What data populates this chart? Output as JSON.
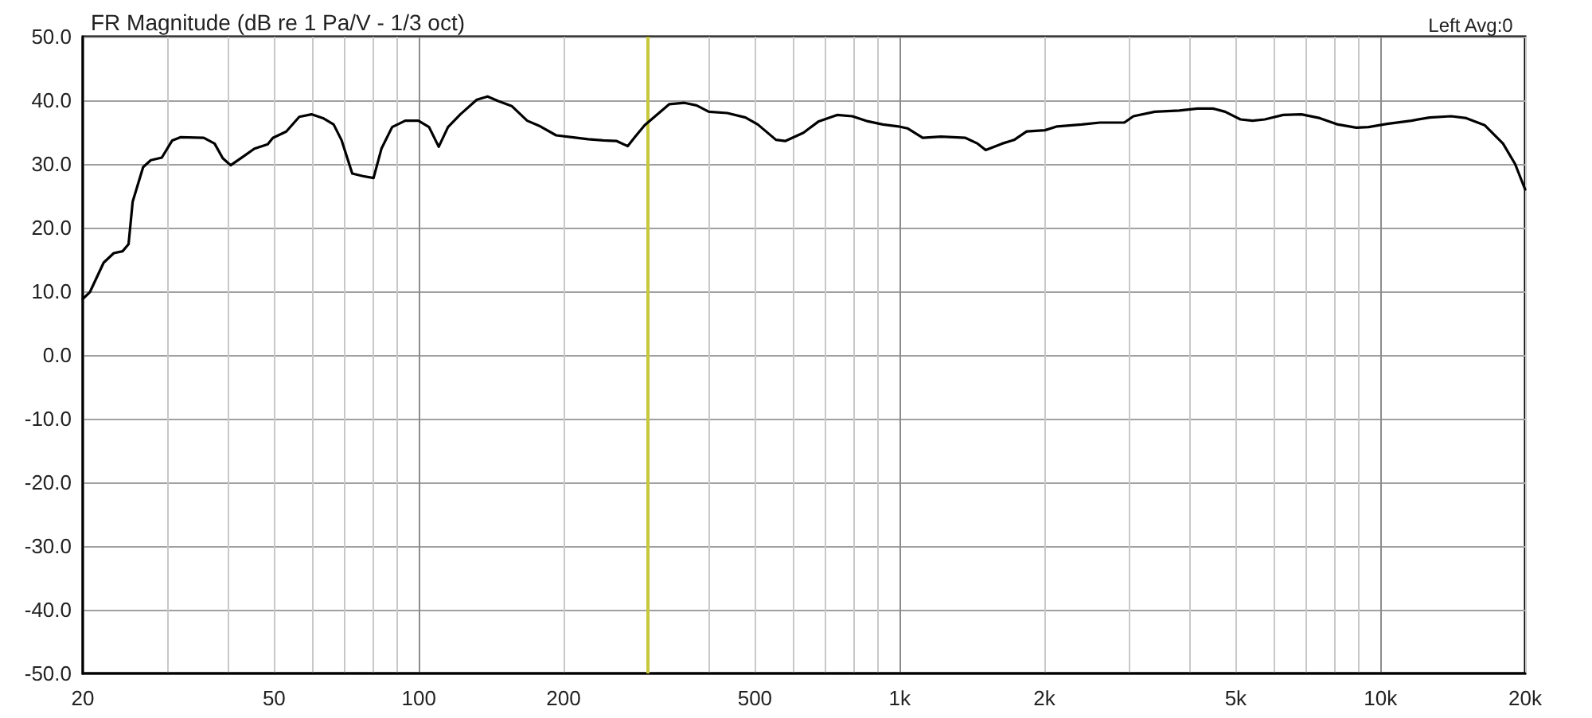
{
  "chart_data": {
    "type": "line",
    "title": "FR Magnitude (dB re 1 Pa/V - 1/3 oct)",
    "annotations": [
      "Left Avg:0"
    ],
    "x": [
      20,
      20.7,
      22.1,
      23.2,
      24.2,
      24.9,
      25.4,
      26.7,
      27.7,
      29.2,
      30.7,
      31.9,
      35.7,
      37.6,
      39.1,
      40.6,
      43.2,
      45.5,
      48.5,
      49.7,
      53,
      56.4,
      59.8,
      63.2,
      66.5,
      69.1,
      72.7,
      76.5,
      80.5,
      83.6,
      88,
      93.7,
      99.8,
      105,
      110,
      115,
      122,
      132,
      139,
      146,
      156,
      168,
      179,
      193,
      208,
      225,
      242,
      258,
      272,
      282,
      295,
      332,
      357,
      378,
      401,
      438,
      478,
      507,
      553,
      578,
      631,
      679,
      741,
      797,
      859,
      923,
      994,
      1038,
      1117,
      1219,
      1371,
      1453,
      1510,
      1634,
      1732,
      1837,
      2005,
      2126,
      2391,
      2610,
      2933,
      3064,
      3394,
      3816,
      4164,
      4483,
      4754,
      5115,
      5422,
      5749,
      6275,
      6849,
      7481,
      8163,
      8911,
      9450,
      10320,
      11600,
      12660,
      14030,
      15090,
      16470,
      17990,
      19060,
      20000
    ],
    "series": [
      {
        "color": "#000000",
        "values": [
          8.8,
          9.9,
          14.5,
          16,
          16.3,
          17.4,
          24.1,
          29.5,
          30.6,
          31,
          33.7,
          34.2,
          34.1,
          33.2,
          30.9,
          29.8,
          31.2,
          32.4,
          33.1,
          34.1,
          35.1,
          37.4,
          37.8,
          37.2,
          36.2,
          33.7,
          28.5,
          28.1,
          27.8,
          32.4,
          35.8,
          36.8,
          36.8,
          35.8,
          32.7,
          35.8,
          37.8,
          40.1,
          40.6,
          39.9,
          39.1,
          36.8,
          35.9,
          34.5,
          34.2,
          33.9,
          33.7,
          33.6,
          32.8,
          34.3,
          36.1,
          39.4,
          39.6,
          39.2,
          38.2,
          38,
          37.3,
          36.2,
          33.8,
          33.6,
          34.9,
          36.7,
          37.7,
          37.5,
          36.7,
          36.2,
          35.9,
          35.6,
          34.1,
          34.3,
          34.1,
          33.2,
          32.2,
          33.2,
          33.8,
          35.1,
          35.3,
          35.9,
          36.2,
          36.5,
          36.5,
          37.5,
          38.2,
          38.4,
          38.7,
          38.7,
          38.2,
          37,
          36.8,
          37,
          37.7,
          37.8,
          37.2,
          36.2,
          35.7,
          35.8,
          36.3,
          36.8,
          37.3,
          37.5,
          37.2,
          36.1,
          33.2,
          30,
          26
        ]
      }
    ],
    "log": "x",
    "xlim": [
      20,
      20000
    ],
    "xticks": [
      20,
      {
        "value": 30,
        "label": null
      },
      {
        "value": 40,
        "label": null
      },
      50,
      {
        "value": 60,
        "label": null
      },
      {
        "value": 70,
        "label": null
      },
      {
        "value": 80,
        "label": null
      },
      {
        "value": 90,
        "label": null
      },
      100,
      200,
      {
        "value": 300,
        "label": null
      },
      {
        "value": 400,
        "label": null
      },
      500,
      {
        "value": 600,
        "label": null
      },
      {
        "value": 700,
        "label": null
      },
      {
        "value": 800,
        "label": null
      },
      {
        "value": 900,
        "label": null
      },
      {
        "value": 1000,
        "label": "1k"
      },
      {
        "value": 2000,
        "label": "2k"
      },
      {
        "value": 3000,
        "label": null
      },
      {
        "value": 4000,
        "label": null
      },
      {
        "value": 5000,
        "label": "5k"
      },
      {
        "value": 6000,
        "label": null
      },
      {
        "value": 7000,
        "label": null
      },
      {
        "value": 8000,
        "label": null
      },
      {
        "value": 9000,
        "label": null
      },
      {
        "value": 10000,
        "label": "10k"
      },
      {
        "value": 20000,
        "label": "20k"
      }
    ],
    "ylim": [
      -50,
      50
    ],
    "yticks": [
      {
        "value": -50,
        "label": "-50.0"
      },
      {
        "value": -40,
        "label": "-40.0"
      },
      {
        "value": -30,
        "label": "-30.0"
      },
      {
        "value": -20,
        "label": "-20.0"
      },
      {
        "value": -10,
        "label": "-10.0"
      },
      {
        "value": 0,
        "label": "0.0"
      },
      {
        "value": 10,
        "label": "10.0"
      },
      {
        "value": 20,
        "label": "20.0"
      },
      {
        "value": 30,
        "label": "30.0"
      },
      {
        "value": 40,
        "label": "40.0"
      },
      {
        "value": 50,
        "label": "50.0"
      }
    ],
    "grid": true,
    "marker": "none",
    "line_style": "solid",
    "ref_lines": [
      {
        "axis": "x",
        "value": 300,
        "color": "#c8c83c"
      }
    ]
  }
}
